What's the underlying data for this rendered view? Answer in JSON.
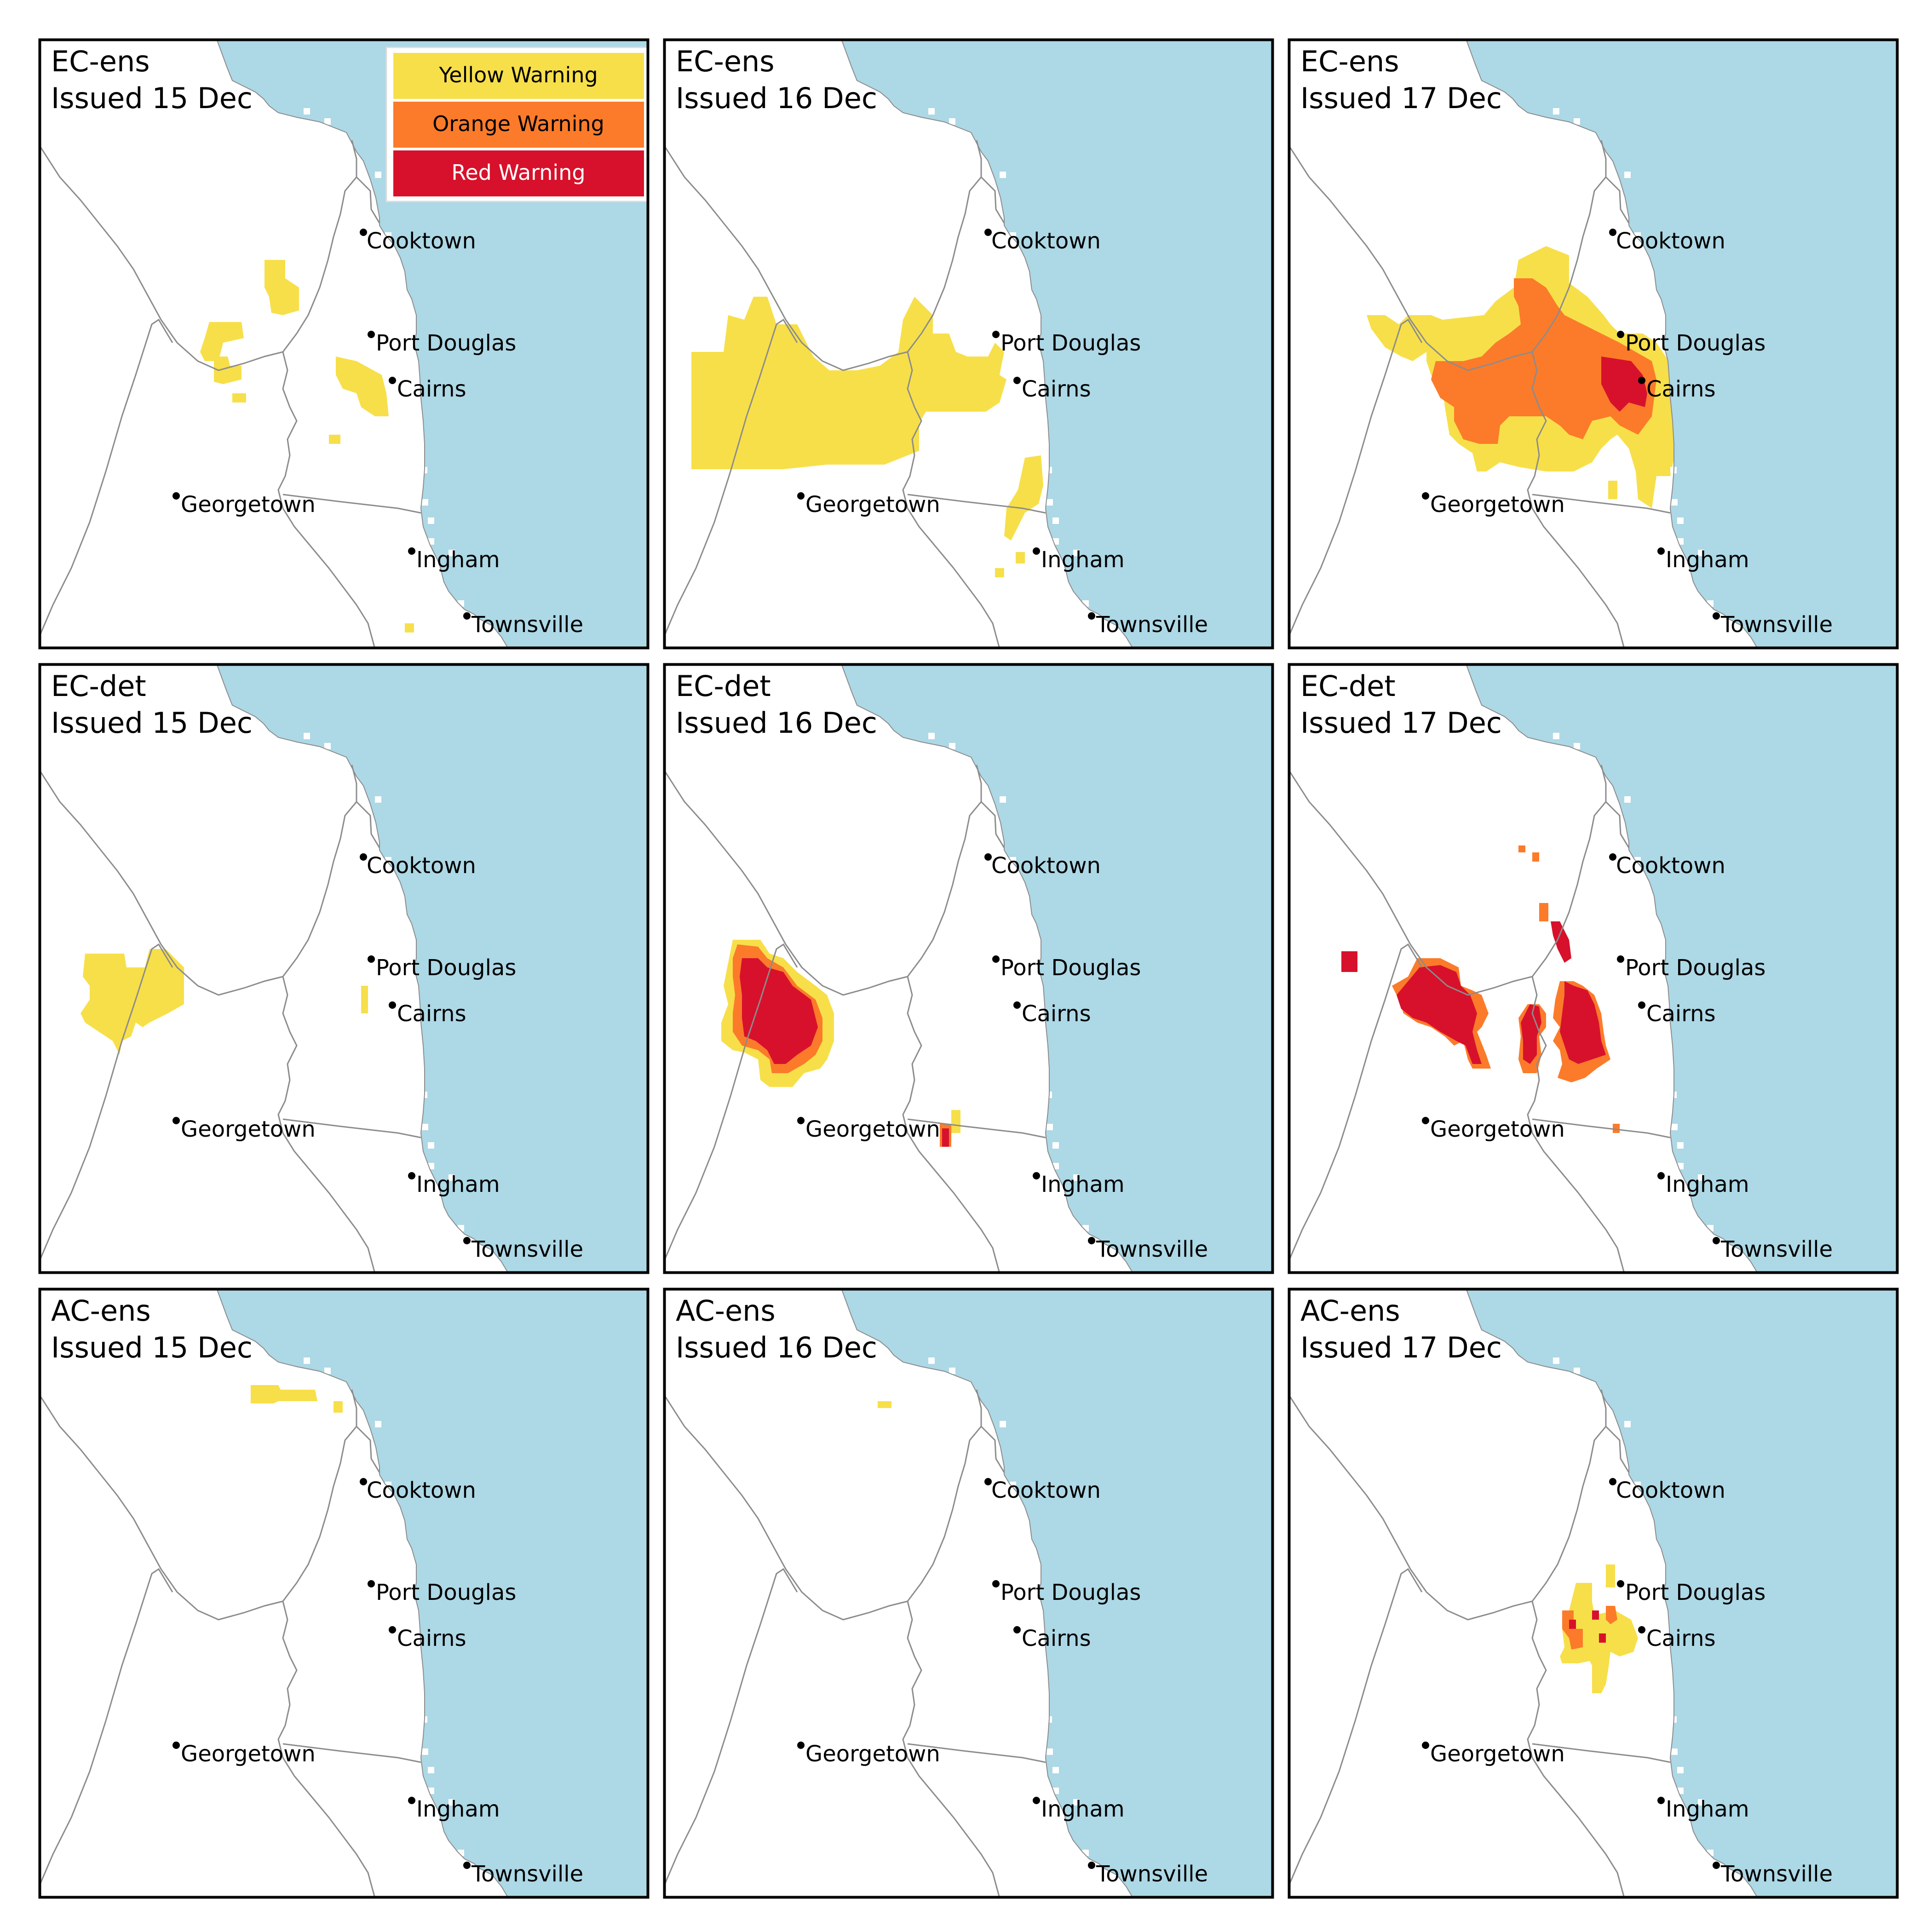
{
  "colors": {
    "ocean": "#add8e6",
    "land": "#ffffff",
    "boundary": "#8c8c8c",
    "frame": "#000000",
    "yellow": "#f7df4a",
    "orange": "#fb7b2a",
    "red": "#d7112b"
  },
  "legend": {
    "items": [
      {
        "label": "Yellow Warning",
        "level": "yellow",
        "text_color": "#000000"
      },
      {
        "label": "Orange Warning",
        "level": "orange",
        "text_color": "#000000"
      },
      {
        "label": "Red Warning",
        "level": "red",
        "text_color": "#ffffff"
      }
    ]
  },
  "cities": [
    "Cooktown",
    "Port Douglas",
    "Cairns",
    "Georgetown",
    "Ingham",
    "Townsville"
  ],
  "panels": [
    {
      "model": "EC-ens",
      "issued": "Issued 15 Dec",
      "show_legend": true,
      "warnings": [
        {
          "level": "yellow",
          "area": "west of Cooktown"
        },
        {
          "level": "yellow",
          "area": "west of Port Douglas"
        },
        {
          "level": "yellow",
          "area": "near Cairns"
        },
        {
          "level": "yellow",
          "area": "south of Townsville (isolated)"
        }
      ]
    },
    {
      "model": "EC-ens",
      "issued": "Issued 16 Dec",
      "show_legend": false,
      "warnings": [
        {
          "level": "yellow",
          "area": "broad region west and north of Georgetown"
        },
        {
          "level": "yellow",
          "area": "coast between Cairns and Ingham"
        }
      ]
    },
    {
      "model": "EC-ens",
      "issued": "Issued 17 Dec",
      "show_legend": false,
      "warnings": [
        {
          "level": "yellow",
          "area": "broad region between Cooktown and Ingham"
        },
        {
          "level": "orange",
          "area": "inland west of Cairns"
        },
        {
          "level": "red",
          "area": "just west of Cairns"
        }
      ]
    },
    {
      "model": "EC-det",
      "issued": "Issued 15 Dec",
      "show_legend": false,
      "warnings": [
        {
          "level": "yellow",
          "area": "far west"
        },
        {
          "level": "yellow",
          "area": "near Cairns (small)"
        }
      ]
    },
    {
      "model": "EC-det",
      "issued": "Issued 16 Dec",
      "show_legend": false,
      "warnings": [
        {
          "level": "yellow",
          "area": "northwest of Georgetown (outer)"
        },
        {
          "level": "orange",
          "area": "northwest of Georgetown"
        },
        {
          "level": "red",
          "area": "northwest of Georgetown (core)"
        },
        {
          "level": "red",
          "area": "east of Georgetown (small)"
        }
      ]
    },
    {
      "model": "EC-det",
      "issued": "Issued 17 Dec",
      "show_legend": false,
      "warnings": [
        {
          "level": "orange",
          "area": "inland between Georgetown and Cairns"
        },
        {
          "level": "red",
          "area": "multiple cells west of Cairns"
        }
      ]
    },
    {
      "model": "AC-ens",
      "issued": "Issued 15 Dec",
      "show_legend": false,
      "warnings": [
        {
          "level": "yellow",
          "area": "north, inland of coast"
        }
      ]
    },
    {
      "model": "AC-ens",
      "issued": "Issued 16 Dec",
      "show_legend": false,
      "warnings": [
        {
          "level": "yellow",
          "area": "north (tiny)"
        }
      ]
    },
    {
      "model": "AC-ens",
      "issued": "Issued 17 Dec",
      "show_legend": false,
      "warnings": [
        {
          "level": "yellow",
          "area": "west of Port Douglas and Cairns"
        },
        {
          "level": "orange",
          "area": "scattered west of Cairns"
        },
        {
          "level": "red",
          "area": "scattered west of Cairns"
        }
      ]
    }
  ]
}
